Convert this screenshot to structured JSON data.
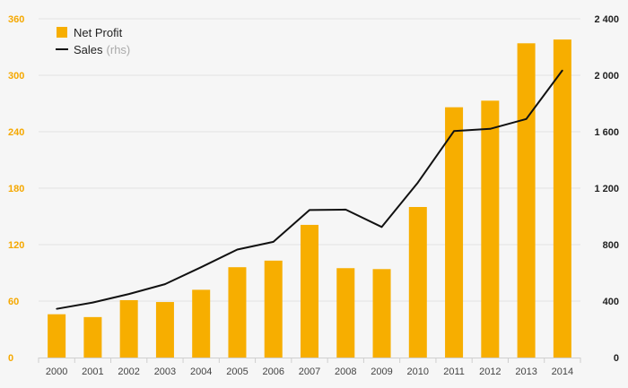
{
  "colors": {
    "bar": "#f7ae00",
    "line": "#111111",
    "left_axis": "#f5a800",
    "right_axis": "#222222",
    "grid": "#e2e2e2"
  },
  "chart_data": {
    "type": "bar",
    "categories": [
      "2000",
      "2001",
      "2002",
      "2003",
      "2004",
      "2005",
      "2006",
      "2007",
      "2008",
      "2009",
      "2010",
      "2011",
      "2012",
      "2013",
      "2014"
    ],
    "series": [
      {
        "name": "Net Profit",
        "type": "bar",
        "axis": "left",
        "values": [
          46,
          43,
          61,
          59,
          72,
          96,
          103,
          141,
          95,
          94,
          160,
          266,
          273,
          334,
          338
        ]
      },
      {
        "name": "Sales",
        "name_suffix": "(rhs)",
        "type": "line",
        "axis": "right",
        "values": [
          345,
          390,
          450,
          520,
          640,
          765,
          820,
          1045,
          1048,
          925,
          1240,
          1605,
          1620,
          1690,
          2035
        ]
      }
    ],
    "left_axis": {
      "ticks": [
        "0",
        "60",
        "120",
        "180",
        "240",
        "300",
        "360"
      ],
      "min": 0,
      "max": 360
    },
    "right_axis": {
      "ticks": [
        "0",
        "400",
        "800",
        "1 200",
        "1 600",
        "2 000",
        "2 400"
      ],
      "min": 0,
      "max": 2400
    },
    "grid": true,
    "legend_position": "top-left"
  }
}
